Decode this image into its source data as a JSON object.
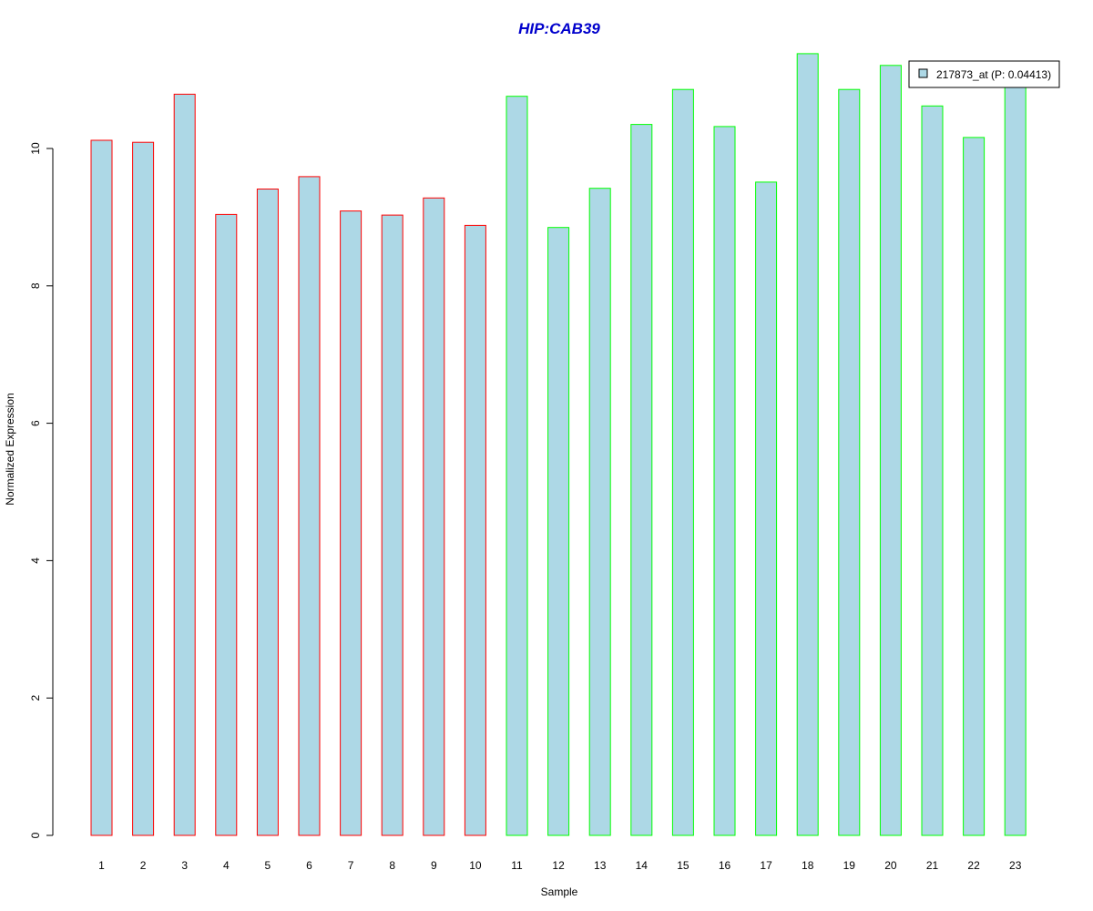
{
  "chart_data": {
    "type": "bar",
    "title": "HIP:CAB39",
    "title_color": "#0000cc",
    "xlabel": "Sample",
    "ylabel": "Normalized Expression",
    "categories": [
      "1",
      "2",
      "3",
      "4",
      "5",
      "6",
      "7",
      "8",
      "9",
      "10",
      "11",
      "12",
      "13",
      "14",
      "15",
      "16",
      "17",
      "18",
      "19",
      "20",
      "21",
      "22",
      "23"
    ],
    "yticks": [
      "0",
      "2",
      "4",
      "6",
      "8",
      "10"
    ],
    "ylim": [
      0,
      11.5
    ],
    "grid": false,
    "legend_position": "top-right",
    "bar_fill": "#add8e6",
    "group_colors": [
      "#ff0000",
      "#00ff00"
    ],
    "groups": [
      0,
      0,
      0,
      0,
      0,
      0,
      0,
      0,
      0,
      0,
      1,
      1,
      1,
      1,
      1,
      1,
      1,
      1,
      1,
      1,
      1,
      1,
      1
    ],
    "series": [
      {
        "name": "217873_at (P: 0.04413)",
        "values": [
          10.12,
          10.09,
          10.79,
          9.04,
          9.41,
          9.59,
          9.09,
          9.03,
          9.28,
          8.88,
          10.76,
          8.85,
          9.42,
          10.35,
          10.86,
          10.32,
          9.51,
          11.38,
          10.86,
          11.21,
          10.62,
          10.16,
          10.96
        ]
      }
    ]
  }
}
